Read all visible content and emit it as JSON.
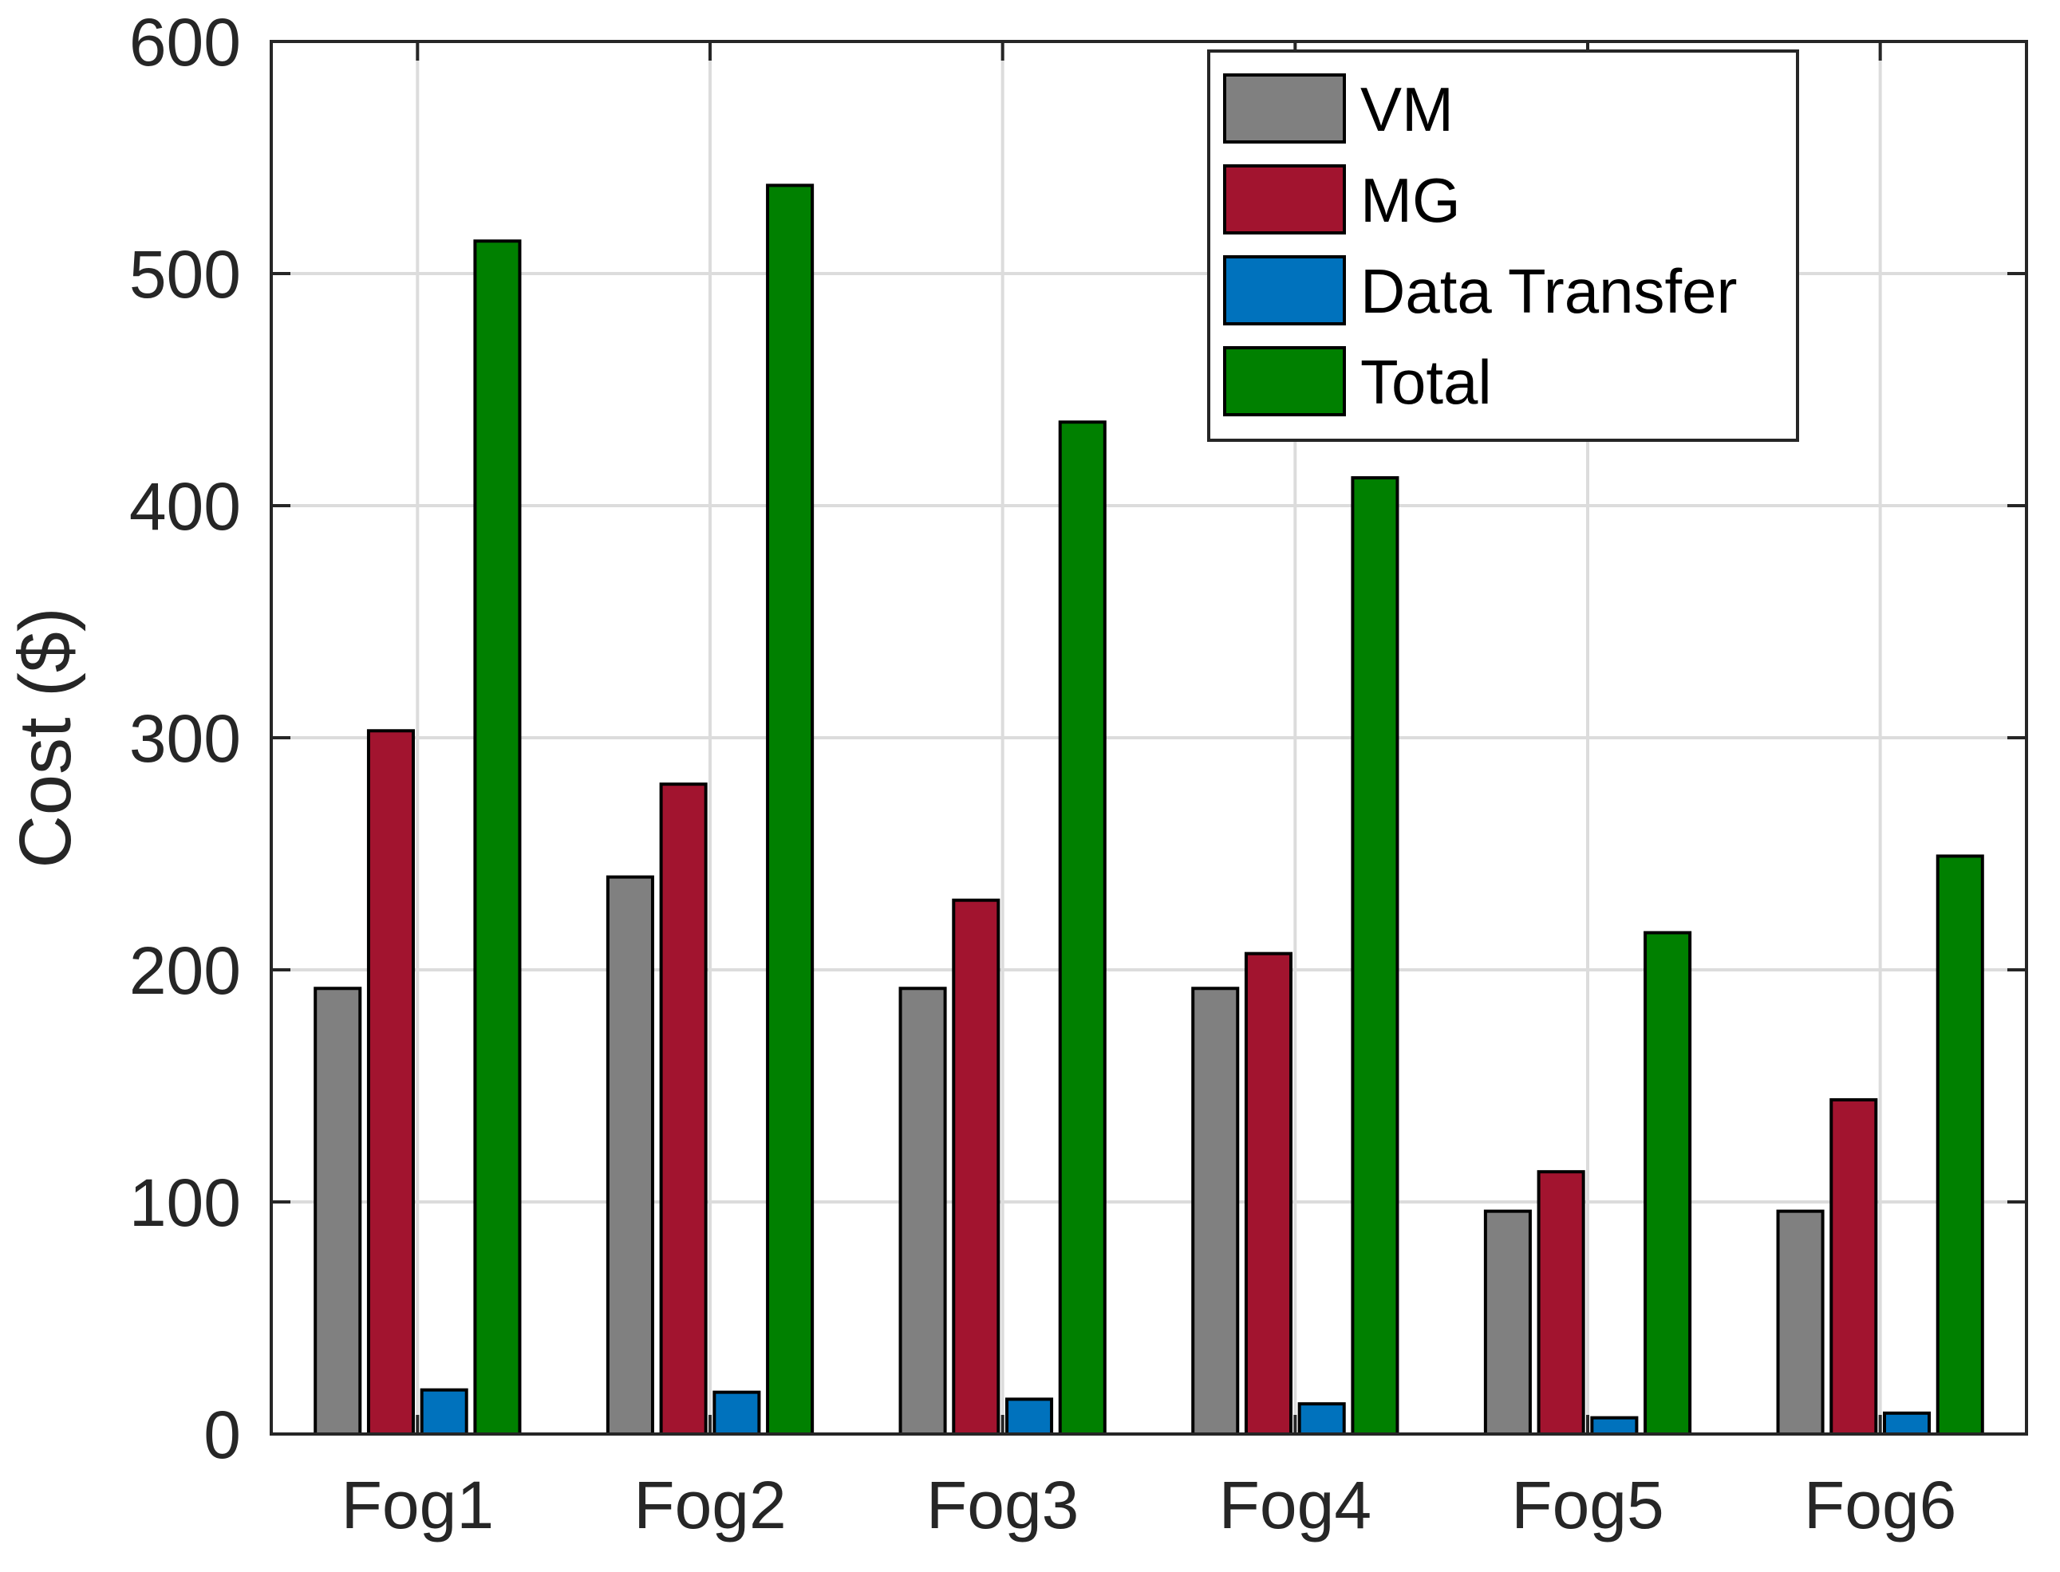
{
  "chart_data": {
    "type": "bar",
    "title": "",
    "xlabel": "",
    "ylabel": "Cost ($)",
    "ylim": [
      0,
      600
    ],
    "yticks": [
      0,
      100,
      200,
      300,
      400,
      500,
      600
    ],
    "grid": true,
    "legend_position": "top-right",
    "categories": [
      "Fog1",
      "Fog2",
      "Fog3",
      "Fog4",
      "Fog5",
      "Fog6"
    ],
    "series": [
      {
        "name": "VM",
        "color": "#808080",
        "values": [
          192,
          240,
          192,
          192,
          96,
          96
        ]
      },
      {
        "name": "MG",
        "color": "#A2142F",
        "values": [
          303,
          280,
          230,
          207,
          113,
          144
        ]
      },
      {
        "name": "Data Transfer",
        "color": "#0072BD",
        "values": [
          19,
          18,
          15,
          13,
          7,
          9
        ]
      },
      {
        "name": "Total",
        "color": "#008000",
        "values": [
          514,
          538,
          436,
          412,
          216,
          249
        ]
      }
    ]
  }
}
